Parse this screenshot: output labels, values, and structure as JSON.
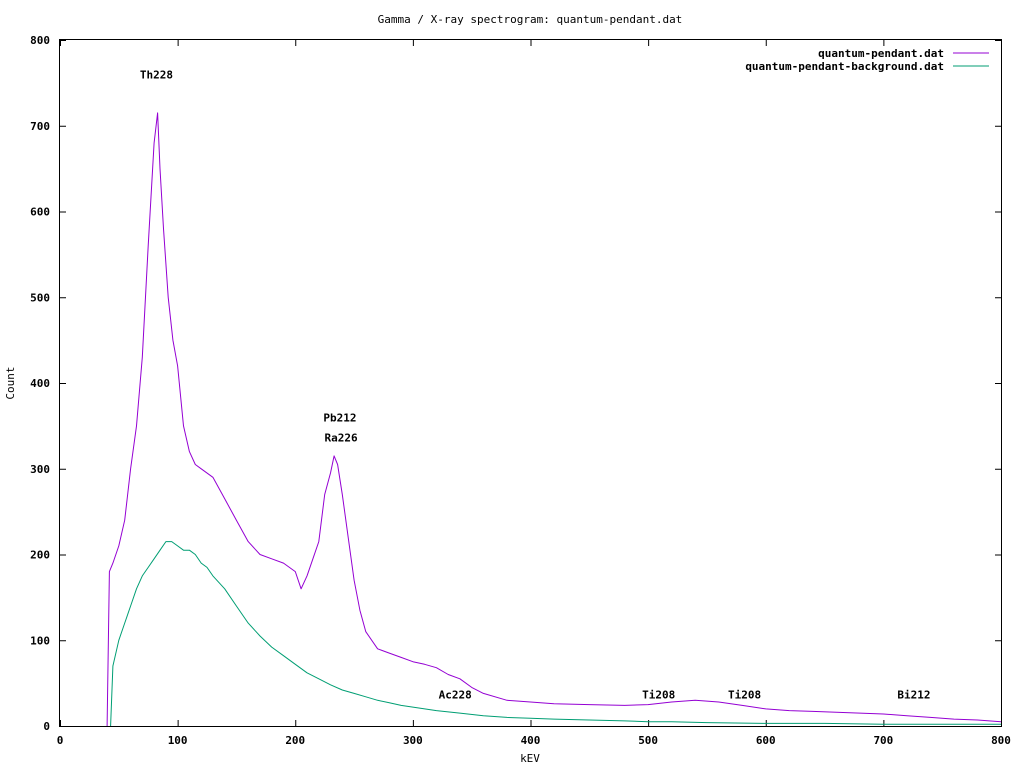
{
  "chart_data": {
    "type": "line",
    "title": "Gamma / X-ray spectrogram: quantum-pendant.dat",
    "xlabel": "kEV",
    "ylabel": "Count",
    "xlim": [
      0,
      800
    ],
    "ylim": [
      0,
      800
    ],
    "xticks": [
      0,
      100,
      200,
      300,
      400,
      500,
      600,
      700,
      800
    ],
    "yticks": [
      0,
      100,
      200,
      300,
      400,
      500,
      600,
      700,
      800
    ],
    "grid": false,
    "legend_position": "top-right",
    "series": [
      {
        "name": "quantum-pendant.dat",
        "color": "#9400d3",
        "x": [
          40,
          42,
          45,
          50,
          55,
          60,
          65,
          70,
          75,
          80,
          83,
          85,
          88,
          92,
          96,
          100,
          105,
          110,
          115,
          120,
          130,
          140,
          150,
          160,
          170,
          180,
          190,
          200,
          205,
          210,
          215,
          220,
          225,
          230,
          233,
          236,
          240,
          245,
          250,
          255,
          260,
          270,
          280,
          290,
          300,
          310,
          320,
          330,
          340,
          350,
          360,
          380,
          400,
          420,
          450,
          480,
          500,
          520,
          540,
          560,
          580,
          600,
          620,
          640,
          660,
          680,
          700,
          720,
          740,
          760,
          780,
          800
        ],
        "values": [
          0,
          180,
          190,
          210,
          240,
          300,
          350,
          430,
          560,
          680,
          715,
          650,
          580,
          500,
          450,
          420,
          350,
          320,
          305,
          300,
          290,
          265,
          240,
          215,
          200,
          195,
          190,
          180,
          160,
          175,
          195,
          215,
          270,
          295,
          315,
          305,
          270,
          220,
          170,
          135,
          110,
          90,
          85,
          80,
          75,
          72,
          68,
          60,
          55,
          45,
          38,
          30,
          28,
          26,
          25,
          24,
          25,
          28,
          30,
          28,
          24,
          20,
          18,
          17,
          16,
          15,
          14,
          12,
          10,
          8,
          7,
          5
        ]
      },
      {
        "name": "quantum-pendant-background.dat",
        "color": "#009e73",
        "x": [
          43,
          45,
          50,
          55,
          60,
          65,
          70,
          75,
          80,
          85,
          90,
          95,
          100,
          105,
          110,
          115,
          120,
          125,
          130,
          140,
          150,
          160,
          170,
          180,
          190,
          200,
          210,
          220,
          230,
          240,
          250,
          260,
          270,
          280,
          290,
          300,
          320,
          340,
          360,
          380,
          400,
          420,
          450,
          480,
          500,
          520,
          550,
          600,
          650,
          700,
          750,
          800
        ],
        "values": [
          0,
          70,
          100,
          120,
          140,
          160,
          175,
          185,
          195,
          205,
          215,
          215,
          210,
          205,
          205,
          200,
          190,
          185,
          175,
          160,
          140,
          120,
          105,
          92,
          82,
          72,
          62,
          55,
          48,
          42,
          38,
          34,
          30,
          27,
          24,
          22,
          18,
          15,
          12,
          10,
          9,
          8,
          7,
          6,
          5,
          5,
          4,
          3,
          3,
          2,
          2,
          2
        ]
      }
    ],
    "annotations": [
      {
        "text": "Th228",
        "x": 82,
        "y": 755
      },
      {
        "text": "Pb212",
        "x": 238,
        "y": 355
      },
      {
        "text": "Ra226",
        "x": 239,
        "y": 332
      },
      {
        "text": "Ac228",
        "x": 336,
        "y": 32
      },
      {
        "text": "Ti208",
        "x": 509,
        "y": 32
      },
      {
        "text": "Ti208",
        "x": 582,
        "y": 32
      },
      {
        "text": "Bi212",
        "x": 726,
        "y": 32
      }
    ]
  }
}
